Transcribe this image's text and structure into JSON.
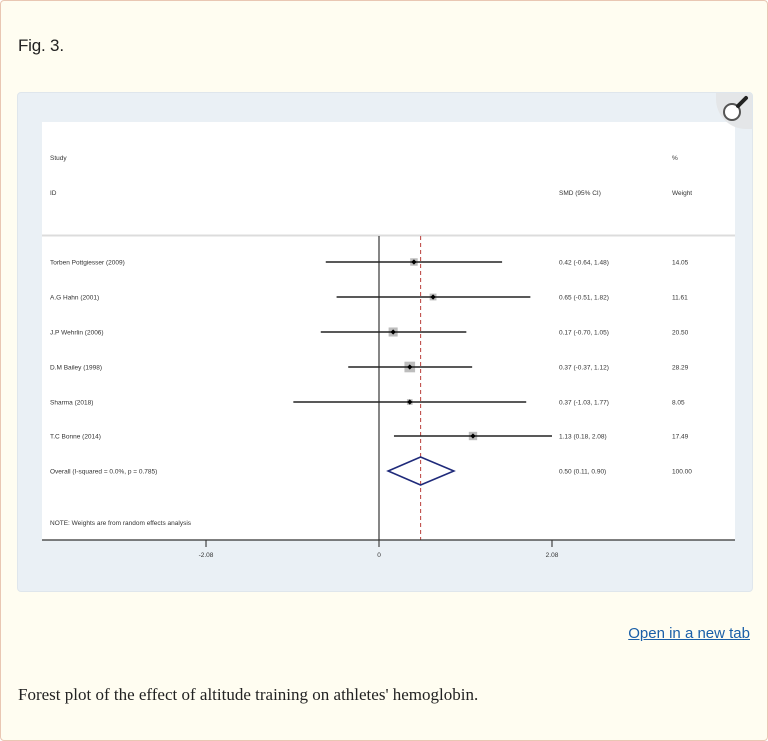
{
  "figure": {
    "label": "Fig. 3.",
    "open_link_label": "Open in a new tab",
    "caption": "Forest plot of the effect of altitude training on athletes' hemoglobin.",
    "zoom_icon": "magnifier-icon"
  },
  "colors": {
    "card_bg": "#fffdf1",
    "card_border": "#e9c7b3",
    "panel_bg": "#eaf0f5",
    "link": "#1a5fa8",
    "ci_line": "#222222",
    "weight_square": "#bdbdbd",
    "pooled_diamond": "#1f2a7a",
    "overall_line": "#c0504d"
  },
  "chart_data": {
    "type": "forest",
    "title": "",
    "headers": {
      "study_top": "Study",
      "study_bottom": "ID",
      "effect": "SMD (95% CI)",
      "weight_top": "%",
      "weight_bottom": "Weight"
    },
    "studies": [
      {
        "name": "Torben Pottgiesser (2009)",
        "smd": 0.42,
        "lower": -0.64,
        "upper": 1.48,
        "effect_label": "0.42 (-0.64, 1.48)",
        "weight": 14.05,
        "weight_label": "14.05"
      },
      {
        "name": "A.G Hahn (2001)",
        "smd": 0.65,
        "lower": -0.51,
        "upper": 1.82,
        "effect_label": "0.65 (-0.51, 1.82)",
        "weight": 11.61,
        "weight_label": "11.61"
      },
      {
        "name": "J.P Wehrlin (2006)",
        "smd": 0.17,
        "lower": -0.7,
        "upper": 1.05,
        "effect_label": "0.17 (-0.70, 1.05)",
        "weight": 20.5,
        "weight_label": "20.50"
      },
      {
        "name": "D.M Bailey (1998)",
        "smd": 0.37,
        "lower": -0.37,
        "upper": 1.12,
        "effect_label": "0.37 (-0.37, 1.12)",
        "weight": 28.29,
        "weight_label": "28.29"
      },
      {
        "name": "Sharma (2018)",
        "smd": 0.37,
        "lower": -1.03,
        "upper": 1.77,
        "effect_label": "0.37 (-1.03, 1.77)",
        "weight": 8.05,
        "weight_label": "8.05"
      },
      {
        "name": "T.C Bonne (2014)",
        "smd": 1.13,
        "lower": 0.18,
        "upper": 2.08,
        "effect_label": "1.13 (0.18, 2.08)",
        "weight": 17.49,
        "weight_label": "17.49"
      }
    ],
    "overall": {
      "name": "Overall  (I-squared = 0.0%, p = 0.785)",
      "smd": 0.5,
      "lower": 0.11,
      "upper": 0.9,
      "effect_label": "0.50 (0.11, 0.90)",
      "weight": 100.0,
      "weight_label": "100.00"
    },
    "note": "NOTE: Weights are from random effects analysis",
    "x_axis": {
      "ticks": [
        -2.08,
        0,
        2.08
      ],
      "tick_labels": [
        "-2.08",
        "0",
        "2.08"
      ],
      "range": [
        -2.08,
        2.08
      ],
      "null_line": 0
    },
    "xlabel": "",
    "ylabel": "",
    "grid": false,
    "legend": null
  }
}
